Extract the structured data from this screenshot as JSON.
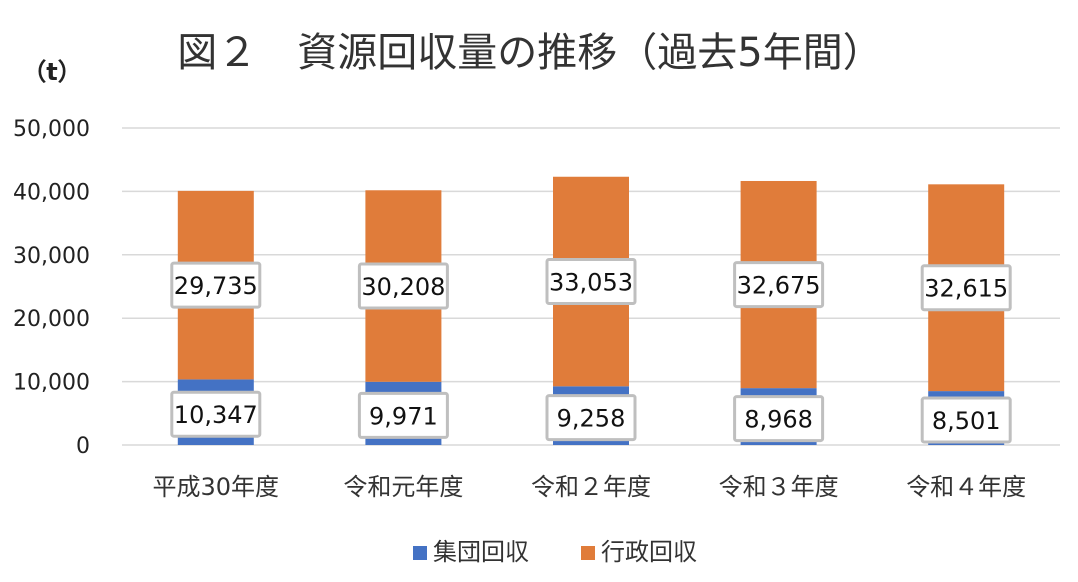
{
  "chart_data": {
    "type": "bar",
    "stacked": true,
    "title": "図２　資源回収量の推移（過去5年間）",
    "unit_label": "（t）",
    "categories": [
      "平成30年度",
      "令和元年度",
      "令和２年度",
      "令和３年度",
      "令和４年度"
    ],
    "series": [
      {
        "name": "集団回収",
        "values": [
          10347,
          9971,
          9258,
          8968,
          8501
        ],
        "color": "#4472C4"
      },
      {
        "name": "行政回収",
        "values": [
          29735,
          30208,
          33053,
          32675,
          32615
        ],
        "color": "#E07C3A"
      }
    ],
    "data_labels": {
      "集団回収": [
        "10,347",
        "9,971",
        "9,258",
        "8,968",
        "8,501"
      ],
      "行政回収": [
        "29,735",
        "30,208",
        "33,053",
        "32,675",
        "32,615"
      ]
    },
    "y_tick_labels": [
      "0",
      "10,000",
      "20,000",
      "30,000",
      "40,000",
      "50,000"
    ],
    "ylim": [
      0,
      50000
    ],
    "grid": true,
    "legend_position": "bottom"
  }
}
